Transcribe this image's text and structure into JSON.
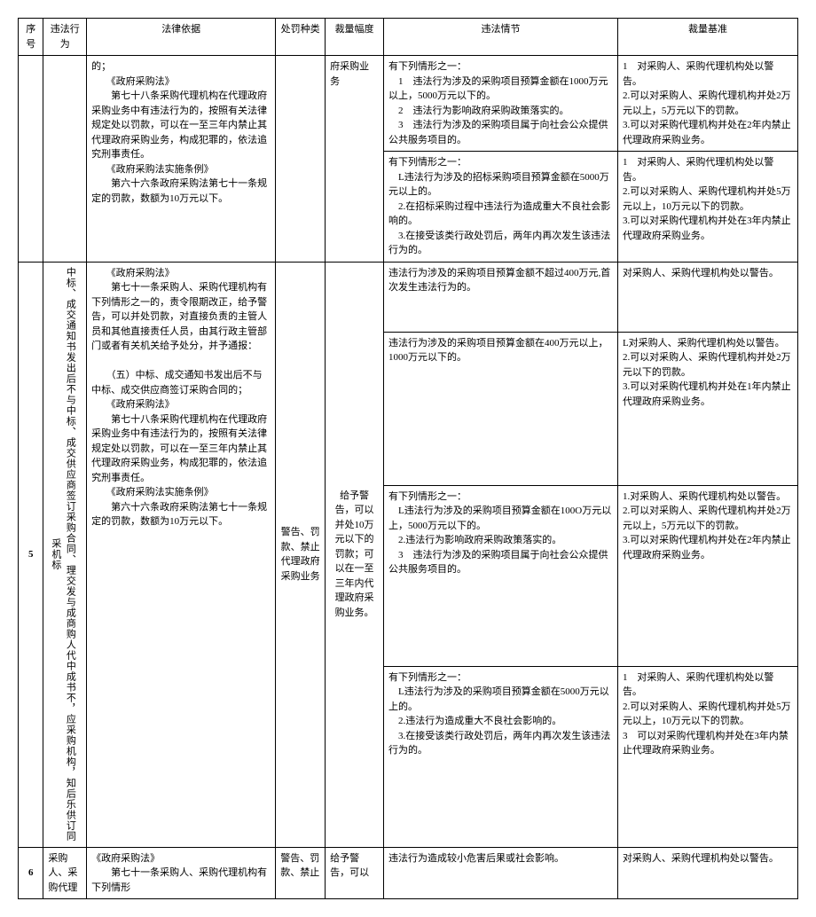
{
  "header": {
    "seq": "序号",
    "act": "违法行为",
    "basis": "法律依据",
    "type": "处罚种类",
    "range": "裁量幅度",
    "circ": "违法情节",
    "std": "裁量基准"
  },
  "row_prev": {
    "basis": "的；\n　　《政府采购法》\n　　第七十八条采购代理机构在代理政府采购业务中有违法行为的，按照有关法律规定处以罚款，可以在一至三年内禁止其代理政府采购业务，构成犯罪的，依法追究刑事责任。\n　　《政府采购法实施条例》\n　　第六十六条政府采购法第七十一条规定的罚款，数额为10万元以下。",
    "range": "府采购业务",
    "circ1": "有下列情形之一：\n　1　违法行为涉及的采购项目预算金额在1000万元以上，5000万元以下的。\n　2　违法行为影响政府采购政策落实的。\n　3　违法行为涉及的采购项目属于向社会公众提供公共服务项目的。",
    "std1": "1　对采购人、采购代理机构处以警告。\n2.可以对采购人、采购代理机构并处2万元以上，5万元以下的罚款。\n3.可以对采购代理机构并处在2年内禁止代理政府采购业务。",
    "circ2": "有下列情形之一：\n　L违法行为涉及的招标采购项目预算金额在5000万元以上的。\n　2.在招标采购过程中违法行为造成重大不良社会影响的。\n　3.在接受该类行政处罚后，两年内再次发生该违法行为的。",
    "std2": "1　对采购人、采购代理机构处以警告。\n2.可以对采购人、采购代理机构并处5万元以上，10万元以下的罚款。\n3.可以对采购代理机构并处在3年内禁止代理政府采购业务。"
  },
  "row5": {
    "seq": "5",
    "act": "中标、成交通知书发出后不与中标、成交供应商签订采购合同、理交发与成商购人代中成书不，应采购机构，知后乐供订同采机标",
    "basis": "　　《政府采购法》\n　　第七十一条采购人、采购代理机构有下列情形之一的，责令限期改正，给予警告，可以并处罚款，对直接负责的主管人员和其他直接责任人员，由其行政主管部门或者有关机关给予处分，并予通报：\n\n　　（五）中标、成交通知书发出后不与中标、成交供应商签订采购合同的；\n　　《政府采购法》\n　　第七十八条采购代理机构在代理政府采购业务中有违法行为的，按照有关法律规定处以罚款，可以在一至三年内禁止其代理政府采购业务，构成犯罪的，依法追究刑事责任。\n　　《政府采购法实施条例》\n　　第六十六条政府采购法第七十一条规定的罚款，数额为10万元以下。",
    "type": "警告、罚款、禁止代理政府采购业务",
    "range": "给予警告，可以并处10万元以下的罚款；可以在一至三年内代理政府采购业务。",
    "circ1": "违法行为涉及的采购项目预算金额不超过400万元,首次发生违法行为的。",
    "std1": "对采购人、采购代理机构处以警告。",
    "circ2": "违法行为涉及的采购项目预算金额在400万元以上，1000万元以下的。",
    "std2": "L对采购人、采购代理机构处以警告。\n2.可以对采购人、采购代理机构并处2万元以下的罚款。\n3.可以对采购代理机构并处在1年内禁止代理政府采购业务。",
    "circ3": "有下列情形之一：\n　L违法行为涉及的采购项目预算金额在100O万元以上，5000万元以下的。\n　2.违法行为影响政府采购政策落实的。\n　3　违法行为涉及的采购项目属于向社会公众提供公共服务项目的。",
    "std3": "1.对采购人、采购代理机构处以警告。\n2.可以对采购人、采购代理机构并处2万元以上，5万元以下的罚款。\n3.可以对采购代理机构并处在2年内禁止代理政府采购业务。",
    "circ4": "有下列情形之一：\n　L违法行为涉及的采购项目预算金额在5000万元以上的。\n　2.违法行为造成重大不良社会影响的。\n　3.在接受该类行政处罚后，两年内再次发生该违法行为的。",
    "std4": "1　对采购人、采购代理机构处以警告。\n2.可以对采购人、采购代理机构并处5万元以上，10万元以下的罚款。\n3　可以对采购代理机构并处在3年内禁止代理政府采购业务。"
  },
  "row6": {
    "seq": "6",
    "act": "采购人、采购代理",
    "basis": "《政府采购法》\n　　第七十一条采购人、采购代理机构有下列情形",
    "type": "警告、罚款、禁止",
    "range": "给予警告，可以",
    "circ": "违法行为造成较小危害后果或社会影响。",
    "std": "对采购人、采购代理机构处以警告。"
  }
}
